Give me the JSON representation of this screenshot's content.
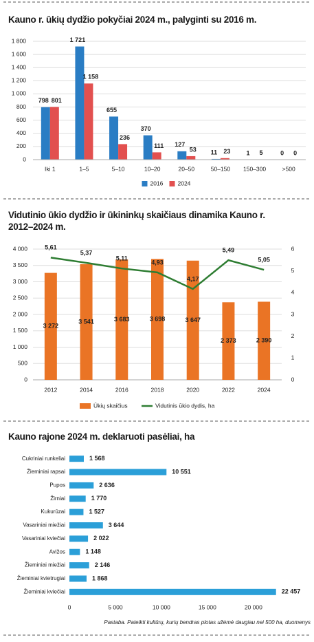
{
  "chart_data": [
    {
      "type": "bar",
      "title": "Kauno r. ūkių dydžio pokyčiai 2024 m., palyginti su 2016 m.",
      "categories": [
        "Iki 1",
        "1–5",
        "5–10",
        "10–20",
        "20–50",
        "50–150",
        "150–300",
        ">500"
      ],
      "series": [
        {
          "name": "2016",
          "color": "#2a7dc4",
          "values": [
            798,
            1721,
            655,
            370,
            127,
            11,
            1,
            0
          ],
          "value_labels": [
            "798",
            "1 721",
            "655",
            "370",
            "127",
            "11",
            "1",
            "0"
          ]
        },
        {
          "name": "2024",
          "color": "#e2504f",
          "values": [
            801,
            1158,
            236,
            111,
            53,
            23,
            5,
            0
          ],
          "value_labels": [
            "801",
            "1 158",
            "236",
            "111",
            "53",
            "23",
            "5",
            "0"
          ]
        }
      ],
      "ylim": [
        0,
        1800
      ],
      "yticks": [
        0,
        200,
        400,
        600,
        800,
        {
          "value": 1000,
          "label": "1 000"
        },
        {
          "value": 1200,
          "label": "1 200"
        },
        {
          "value": 1400,
          "label": "1 400"
        },
        {
          "value": 1600,
          "label": "1 600"
        },
        {
          "value": 1800,
          "label": "1 800"
        }
      ],
      "grid": true
    },
    {
      "type": "combo",
      "title": "Vidutinio ūkio dydžio ir ūkininkų skaičiaus dinamika Kauno r. 2012–2024 m.",
      "categories": [
        "2012",
        "2014",
        "2016",
        "2018",
        "2020",
        "2022",
        "2024"
      ],
      "series": [
        {
          "name": "Ūkių skaičius",
          "kind": "bar",
          "color": "#ea7425",
          "values": [
            3272,
            3541,
            3683,
            3698,
            3647,
            2373,
            2390
          ],
          "value_labels": [
            "3 272",
            "3 541",
            "3 683",
            "3 698",
            "3 647",
            "2 373",
            "2 390"
          ]
        },
        {
          "name": "Vidutinis ūkio dydis, ha",
          "kind": "line",
          "axis": "y2",
          "color": "#2e7d32",
          "values": [
            5.61,
            5.37,
            5.11,
            4.93,
            4.17,
            5.49,
            5.05
          ],
          "value_labels": [
            "5,61",
            "5,37",
            "5,11",
            "4,93",
            "4,17",
            "5,49",
            "5,05"
          ]
        }
      ],
      "ylim": [
        0,
        4000
      ],
      "yticks": [
        0,
        500,
        {
          "value": 1000,
          "label": "1 000"
        },
        {
          "value": 1500,
          "label": "1 500"
        },
        {
          "value": 2000,
          "label": "2 000"
        },
        {
          "value": 2500,
          "label": "2 500"
        },
        {
          "value": 3000,
          "label": "3 000"
        },
        {
          "value": 3500,
          "label": "3 500"
        },
        {
          "value": 4000,
          "label": "4 000"
        }
      ],
      "y2lim": [
        0,
        6
      ],
      "y2ticks": [
        0,
        1,
        2,
        3,
        4,
        5,
        6
      ],
      "grid": true
    },
    {
      "type": "barh",
      "title": "Kauno rajone 2024 m. deklaruoti pasėliai, ha",
      "categories": [
        "Cukriniai runkeliai",
        "Žieminiai rapsai",
        "Pupos",
        "Žirniai",
        "Kukurūzai",
        "Vasariniai miežiai",
        "Vasariniai kviečiai",
        "Avižos",
        "Žieminiai miežiai",
        "Žieminiai kvietrugiai",
        "Žieminiai kviečiai"
      ],
      "values": [
        1568,
        10551,
        2636,
        1770,
        1527,
        3644,
        2022,
        1148,
        2146,
        1868,
        22457
      ],
      "value_labels": [
        "1 568",
        "10 551",
        "2 636",
        "1 770",
        "1 527",
        "3 644",
        "2 022",
        "1 148",
        "2 146",
        "1 868",
        "22 457"
      ],
      "color": "#2b9fd8",
      "xlim": [
        0,
        23000
      ],
      "xticks": [
        0,
        {
          "value": 5000,
          "label": "5 000"
        },
        {
          "value": 10000,
          "label": "10 000"
        },
        {
          "value": 15000,
          "label": "15 000"
        },
        {
          "value": 20000,
          "label": "20 000"
        }
      ],
      "note": "Pastaba. Pateikti kultūrų, kurių bendras plotas užėmė daugiau nei 500 ha, duomenys"
    }
  ]
}
